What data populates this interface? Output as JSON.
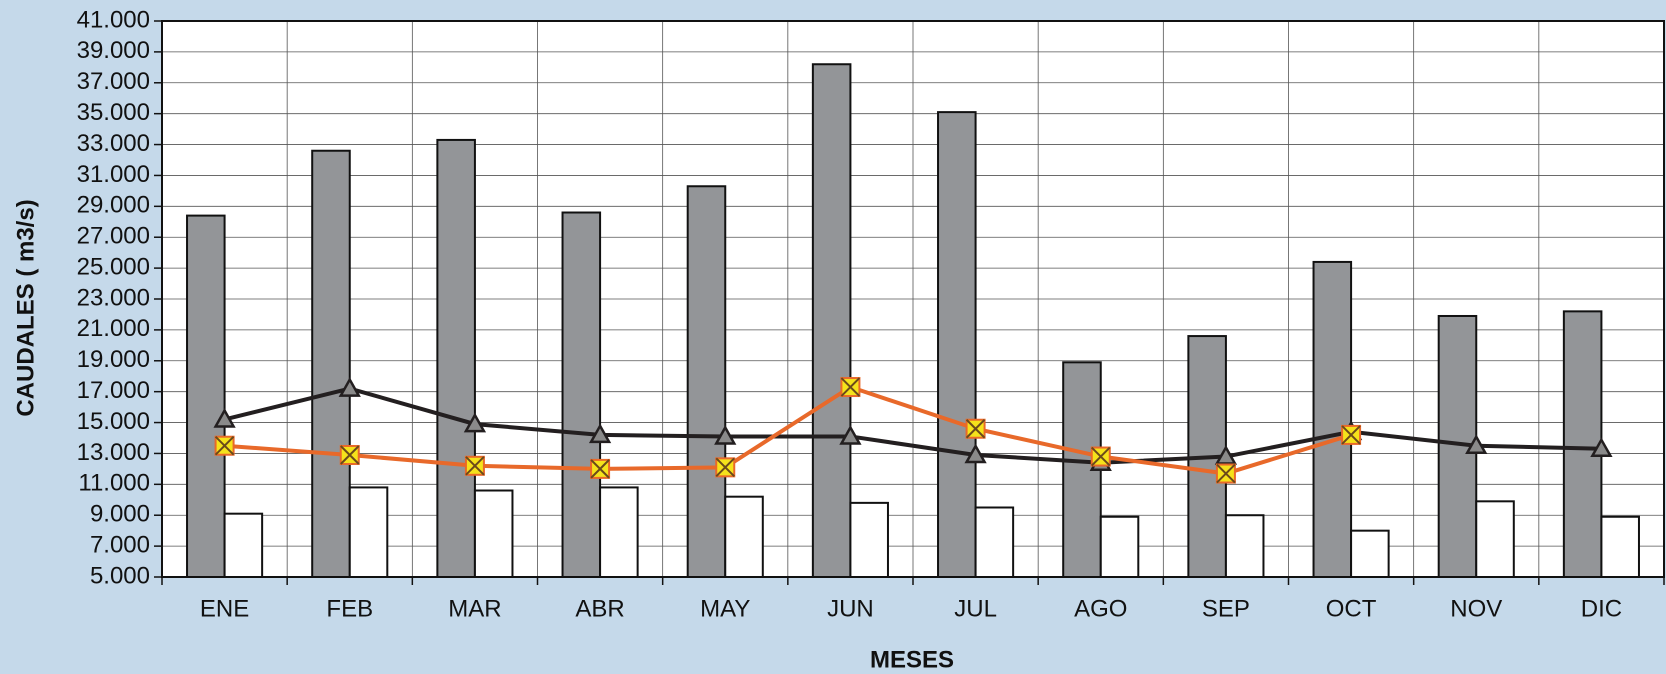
{
  "chart_data": {
    "type": "bar",
    "x_label": "MESES",
    "y_label": "CAUDALES ( m3/s)",
    "categories": [
      "ENE",
      "FEB",
      "MAR",
      "ABR",
      "MAY",
      "JUN",
      "JUL",
      "AGO",
      "SEP",
      "OCT",
      "NOV",
      "DIC"
    ],
    "series": [
      {
        "type": "bar",
        "color": "#939598",
        "values": [
          28400,
          32600,
          33300,
          28600,
          30300,
          38200,
          35100,
          18900,
          20600,
          25400,
          21900,
          22200
        ]
      },
      {
        "type": "bar",
        "color": "#ffffff",
        "values": [
          9100,
          10800,
          10600,
          10800,
          10200,
          9800,
          9500,
          8900,
          9000,
          8000,
          9900,
          8900
        ]
      },
      {
        "type": "line",
        "marker": "triangle",
        "color": "#231f20",
        "values": [
          15200,
          17200,
          14900,
          14200,
          14100,
          14100,
          12900,
          12400,
          12800,
          14400,
          13500,
          13300
        ]
      },
      {
        "type": "line",
        "marker": "x-square",
        "color": "#e8692a",
        "values": [
          13500,
          12900,
          12200,
          12000,
          12100,
          17300,
          14600,
          12800,
          11700,
          14200,
          null,
          null
        ]
      }
    ],
    "ylim": [
      5000,
      41000
    ],
    "yticks": [
      {
        "value": 5000,
        "label": "5.000"
      },
      {
        "value": 7000,
        "label": "7.000"
      },
      {
        "value": 9000,
        "label": "9.000"
      },
      {
        "value": 11000,
        "label": "11.000"
      },
      {
        "value": 13000,
        "label": "13.000"
      },
      {
        "value": 15000,
        "label": "15.000"
      },
      {
        "value": 17000,
        "label": "17.000"
      },
      {
        "value": 19000,
        "label": "19.000"
      },
      {
        "value": 21000,
        "label": "21.000"
      },
      {
        "value": 23000,
        "label": "23.000"
      },
      {
        "value": 25000,
        "label": "25.000"
      },
      {
        "value": 27000,
        "label": "27.000"
      },
      {
        "value": 29000,
        "label": "29.000"
      },
      {
        "value": 31000,
        "label": "31.000"
      },
      {
        "value": 33000,
        "label": "33.000"
      },
      {
        "value": 35000,
        "label": "35.000"
      },
      {
        "value": 37000,
        "label": "37.000"
      },
      {
        "value": 39000,
        "label": "39.000"
      },
      {
        "value": 41000,
        "label": "41.000"
      }
    ],
    "grid": true
  }
}
